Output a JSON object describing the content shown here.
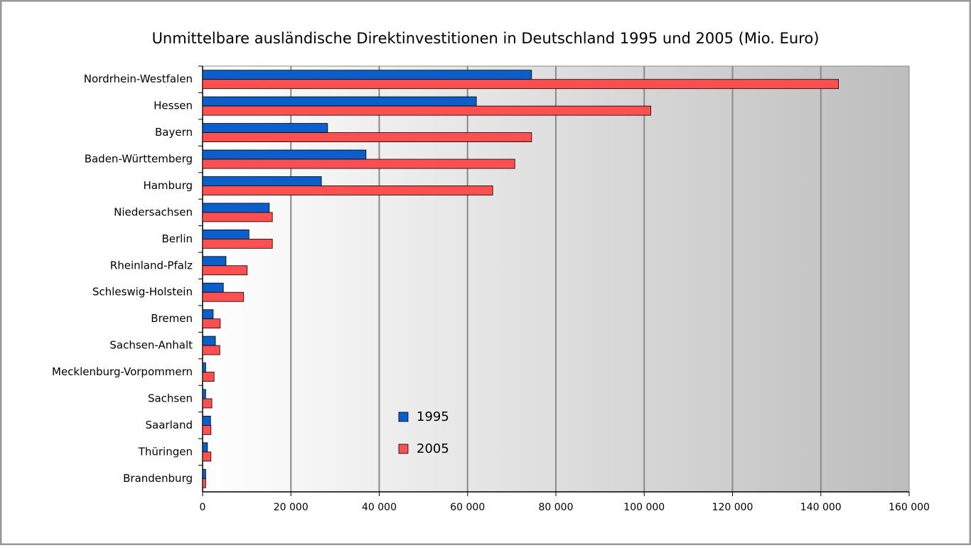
{
  "chart_data": {
    "type": "hbar",
    "title": "Unmittelbare ausländische Direktinvestitionen in Deutschland 1995 und 2005 (Mio. Euro)",
    "categories": [
      "Nordrhein-Westfalen",
      "Hessen",
      "Bayern",
      "Baden-Württemberg",
      "Hamburg",
      "Niedersachsen",
      "Berlin",
      "Rheinland-Pfalz",
      "Schleswig-Holstein",
      "Bremen",
      "Sachsen-Anhalt",
      "Mecklenburg-Vorpommern",
      "Sachsen",
      "Saarland",
      "Thüringen",
      "Brandenburg"
    ],
    "series": [
      {
        "name": "1995",
        "color": "#0a5fcc",
        "values": [
          74500,
          62000,
          28300,
          37000,
          26900,
          15100,
          10500,
          5300,
          4700,
          2400,
          2900,
          700,
          700,
          1800,
          1100,
          700
        ]
      },
      {
        "name": "2005",
        "color": "#ff4f4f",
        "values": [
          144000,
          101500,
          74500,
          70700,
          65700,
          15800,
          15800,
          10100,
          9300,
          4000,
          3900,
          2600,
          2100,
          1900,
          1900,
          700
        ]
      }
    ],
    "xlim": [
      0,
      160000
    ],
    "xticks": [
      0,
      {
        "value": 20000,
        "label": "20 000"
      },
      {
        "value": 40000,
        "label": "40 000"
      },
      {
        "value": 60000,
        "label": "60 000"
      },
      {
        "value": 80000,
        "label": "80 000"
      },
      {
        "value": 100000,
        "label": "100 000"
      },
      {
        "value": 120000,
        "label": "120 000"
      },
      {
        "value": 140000,
        "label": "140 000"
      },
      {
        "value": 160000,
        "label": "160 000"
      }
    ],
    "grid": true
  }
}
